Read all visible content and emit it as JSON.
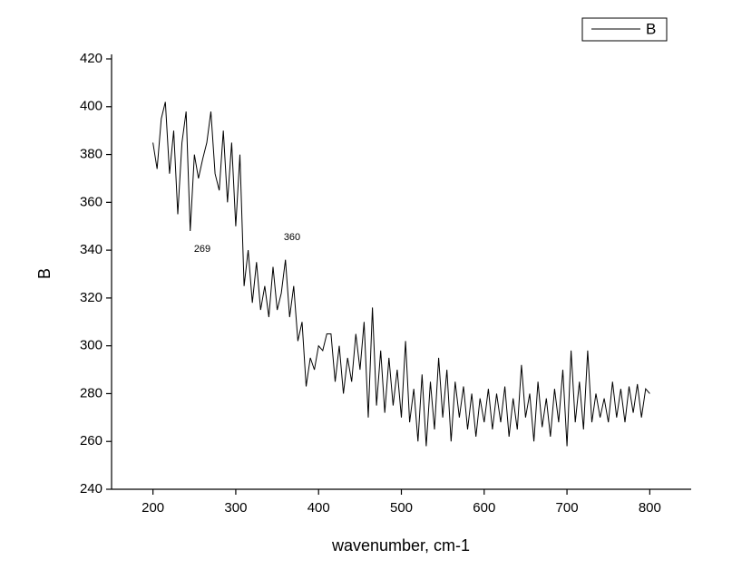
{
  "chart_data": {
    "type": "line",
    "x_label": "wavenumber, cm-1",
    "y_label": "B",
    "x": [
      200,
      205,
      210,
      215,
      220,
      225,
      230,
      235,
      240,
      245,
      250,
      255,
      260,
      265,
      270,
      275,
      280,
      285,
      290,
      295,
      300,
      305,
      310,
      315,
      320,
      325,
      330,
      335,
      340,
      345,
      350,
      355,
      360,
      365,
      370,
      375,
      380,
      385,
      390,
      395,
      400,
      405,
      410,
      415,
      420,
      425,
      430,
      435,
      440,
      445,
      450,
      455,
      460,
      465,
      470,
      475,
      480,
      485,
      490,
      495,
      500,
      505,
      510,
      515,
      520,
      525,
      530,
      535,
      540,
      545,
      550,
      555,
      560,
      565,
      570,
      575,
      580,
      585,
      590,
      595,
      600,
      605,
      610,
      615,
      620,
      625,
      630,
      635,
      640,
      645,
      650,
      655,
      660,
      665,
      670,
      675,
      680,
      685,
      690,
      695,
      700,
      705,
      710,
      715,
      720,
      725,
      730,
      735,
      740,
      745,
      750,
      755,
      760,
      765,
      770,
      775,
      780,
      785,
      790,
      795,
      800
    ],
    "series": [
      {
        "name": "B",
        "color": "#000000",
        "values": [
          385,
          374,
          395,
          402,
          372,
          390,
          355,
          385,
          398,
          348,
          380,
          370,
          378,
          385,
          398,
          372,
          365,
          390,
          360,
          385,
          350,
          380,
          325,
          340,
          318,
          335,
          315,
          325,
          312,
          333,
          315,
          322,
          336,
          312,
          325,
          302,
          310,
          283,
          295,
          290,
          300,
          298,
          305,
          305,
          285,
          300,
          280,
          295,
          285,
          305,
          290,
          310,
          270,
          316,
          275,
          298,
          272,
          295,
          275,
          290,
          270,
          302,
          268,
          282,
          260,
          288,
          258,
          285,
          265,
          295,
          270,
          290,
          260,
          285,
          270,
          283,
          265,
          280,
          262,
          278,
          268,
          282,
          265,
          280,
          268,
          283,
          262,
          278,
          265,
          292,
          270,
          280,
          260,
          285,
          266,
          278,
          262,
          282,
          268,
          290,
          258,
          298,
          268,
          285,
          265,
          298,
          268,
          280,
          270,
          278,
          268,
          285,
          270,
          282,
          268,
          283,
          272,
          284,
          270,
          282,
          280
        ]
      }
    ],
    "xlim": [
      150,
      850
    ],
    "ylim": [
      240,
      420
    ],
    "xticks": [
      200,
      300,
      400,
      500,
      600,
      700,
      800
    ],
    "yticks": [
      240,
      260,
      280,
      300,
      320,
      340,
      360,
      380,
      400,
      420
    ],
    "annotations": [
      "269",
      "360"
    ],
    "legend": "top-right"
  }
}
